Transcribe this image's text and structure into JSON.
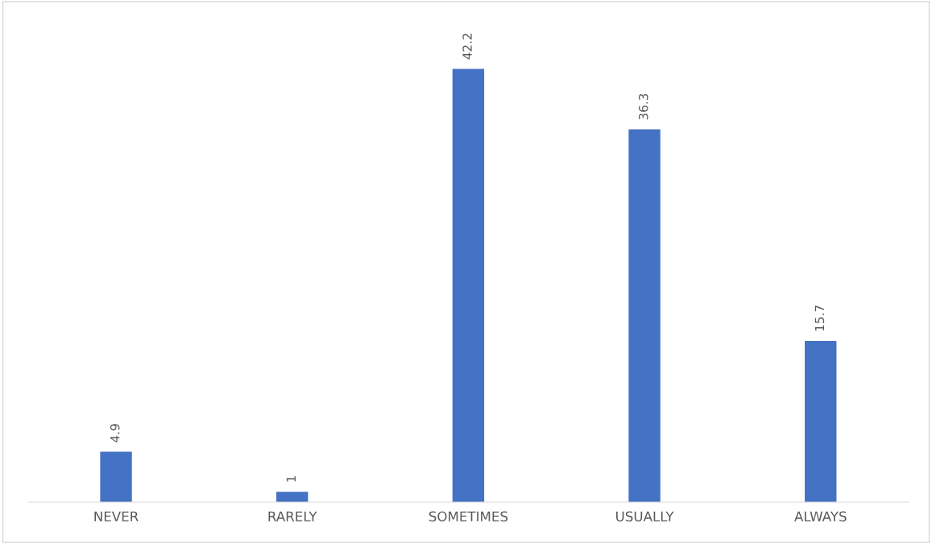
{
  "chart_data": {
    "type": "bar",
    "categories": [
      "NEVER",
      "RARELY",
      "SOMETIMES",
      "USUALLY",
      "ALWAYS"
    ],
    "values": [
      4.9,
      1,
      42.2,
      36.3,
      15.7
    ],
    "color": "#4472c4",
    "data_labels": true,
    "tick_labels": "x",
    "grid": false,
    "legend": false
  }
}
